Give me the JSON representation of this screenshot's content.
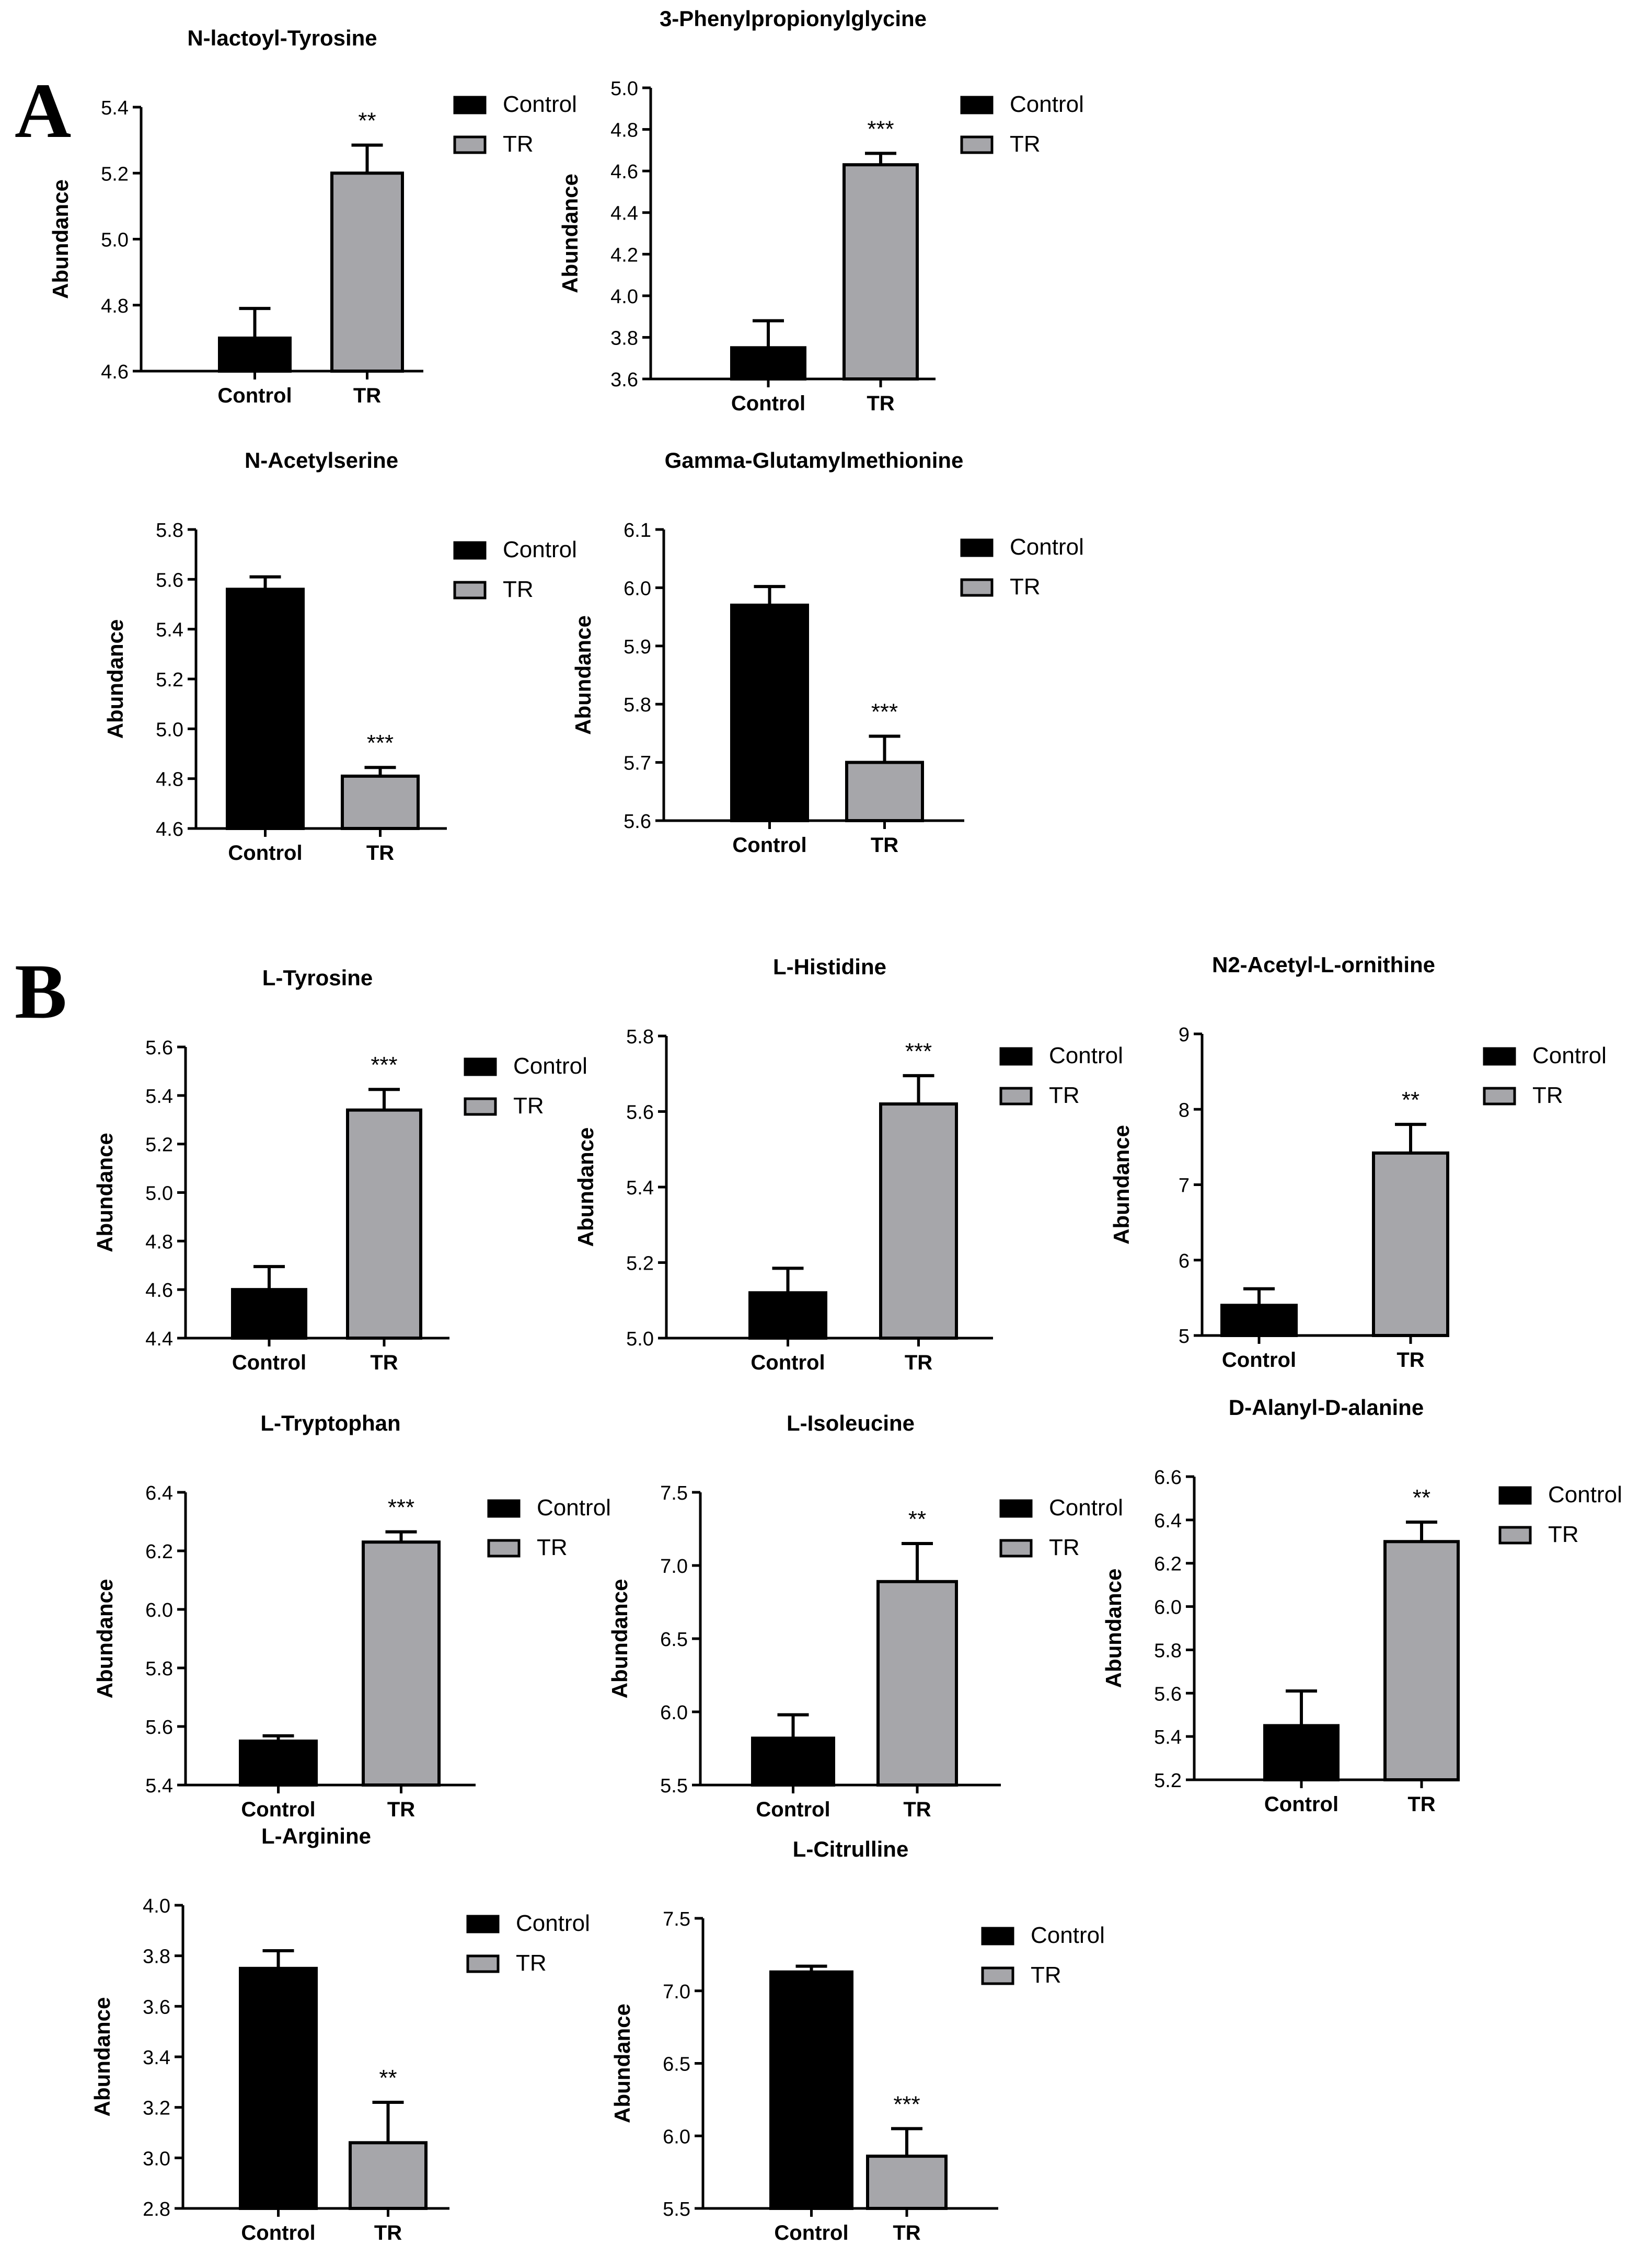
{
  "panels": [
    {
      "letter": "A"
    },
    {
      "letter": "B"
    }
  ],
  "colors": {
    "control": "#000000",
    "tr": "#a6a6aa",
    "axis": "#000000"
  },
  "chart_data": [
    {
      "type": "bar",
      "panel": "A",
      "title": "N-lactoyl-Tyrosine",
      "ylabel": "Abundance",
      "xlabel": "",
      "categories": [
        "Control",
        "TR"
      ],
      "values": [
        4.7,
        5.2
      ],
      "errors": [
        0.09,
        0.085
      ],
      "ylim": [
        4.6,
        5.4
      ],
      "yticks": [
        4.6,
        4.8,
        5.0,
        5.2,
        5.4
      ],
      "tick_decimals": 1,
      "significance": "**",
      "legend": [
        "Control",
        "TR"
      ]
    },
    {
      "type": "bar",
      "panel": "A",
      "title": "3-Phenylpropionylglycine",
      "ylabel": "Abundance",
      "xlabel": "",
      "categories": [
        "Control",
        "TR"
      ],
      "values": [
        3.75,
        4.63
      ],
      "errors": [
        0.13,
        0.055
      ],
      "ylim": [
        3.6,
        5.0
      ],
      "yticks": [
        3.6,
        3.8,
        4.0,
        4.2,
        4.4,
        4.6,
        4.8,
        5.0
      ],
      "tick_decimals": 1,
      "significance": "***",
      "legend": [
        "Control",
        "TR"
      ]
    },
    {
      "type": "bar",
      "panel": "A",
      "title": "N-Acetylserine",
      "ylabel": "Abundance",
      "xlabel": "",
      "categories": [
        "Control",
        "TR"
      ],
      "values": [
        5.56,
        4.81
      ],
      "errors": [
        0.05,
        0.035
      ],
      "ylim": [
        4.6,
        5.8
      ],
      "yticks": [
        4.6,
        4.8,
        5.0,
        5.2,
        5.4,
        5.6,
        5.8
      ],
      "tick_decimals": 1,
      "significance": "***",
      "legend": [
        "Control",
        "TR"
      ]
    },
    {
      "type": "bar",
      "panel": "A",
      "title": "Gamma-Glutamylmethionine",
      "ylabel": "Abundance",
      "xlabel": "",
      "categories": [
        "Control",
        "TR"
      ],
      "values": [
        5.97,
        5.7
      ],
      "errors": [
        0.032,
        0.045
      ],
      "ylim": [
        5.6,
        6.1
      ],
      "yticks": [
        5.6,
        5.7,
        5.8,
        5.9,
        6.0,
        6.1
      ],
      "tick_decimals": 1,
      "significance": "***",
      "legend": [
        "Control",
        "TR"
      ]
    },
    {
      "type": "bar",
      "panel": "B",
      "title": "L-Tyrosine",
      "ylabel": "Abundance",
      "xlabel": "",
      "categories": [
        "Control",
        "TR"
      ],
      "values": [
        4.6,
        5.34
      ],
      "errors": [
        0.095,
        0.085
      ],
      "ylim": [
        4.4,
        5.6
      ],
      "yticks": [
        4.4,
        4.6,
        4.8,
        5.0,
        5.2,
        5.4,
        5.6
      ],
      "tick_decimals": 1,
      "significance": "***",
      "legend": [
        "Control",
        "TR"
      ]
    },
    {
      "type": "bar",
      "panel": "B",
      "title": "L-Histidine",
      "ylabel": "Abundance",
      "xlabel": "",
      "categories": [
        "Control",
        "TR"
      ],
      "values": [
        5.12,
        5.62
      ],
      "errors": [
        0.065,
        0.075
      ],
      "ylim": [
        5.0,
        5.8
      ],
      "yticks": [
        5.0,
        5.2,
        5.4,
        5.6,
        5.8
      ],
      "tick_decimals": 1,
      "significance": "***",
      "legend": [
        "Control",
        "TR"
      ]
    },
    {
      "type": "bar",
      "panel": "B",
      "title": "N2-Acetyl-L-ornithine",
      "ylabel": "Abundance",
      "xlabel": "",
      "categories": [
        "Control",
        "TR"
      ],
      "values": [
        5.4,
        7.42
      ],
      "errors": [
        0.22,
        0.38
      ],
      "ylim": [
        5,
        9
      ],
      "yticks": [
        5,
        6,
        7,
        8,
        9
      ],
      "tick_decimals": 0,
      "significance": "**",
      "legend": [
        "Control",
        "TR"
      ]
    },
    {
      "type": "bar",
      "panel": "B",
      "title": "L-Tryptophan",
      "ylabel": "Abundance",
      "xlabel": "",
      "categories": [
        "Control",
        "TR"
      ],
      "values": [
        5.55,
        6.23
      ],
      "errors": [
        0.018,
        0.035
      ],
      "ylim": [
        5.4,
        6.4
      ],
      "yticks": [
        5.4,
        5.6,
        5.8,
        6.0,
        6.2,
        6.4
      ],
      "tick_decimals": 1,
      "significance": "***",
      "legend": [
        "Control",
        "TR"
      ]
    },
    {
      "type": "bar",
      "panel": "B",
      "title": "L-Isoleucine",
      "ylabel": "Abundance",
      "xlabel": "",
      "categories": [
        "Control",
        "TR"
      ],
      "values": [
        5.82,
        6.89
      ],
      "errors": [
        0.16,
        0.26
      ],
      "ylim": [
        5.5,
        7.5
      ],
      "yticks": [
        5.5,
        6.0,
        6.5,
        7.0,
        7.5
      ],
      "tick_decimals": 1,
      "significance": "**",
      "legend": [
        "Control",
        "TR"
      ]
    },
    {
      "type": "bar",
      "panel": "B",
      "title": "D-Alanyl-D-alanine",
      "ylabel": "Abundance",
      "xlabel": "",
      "categories": [
        "Control",
        "TR"
      ],
      "values": [
        5.45,
        6.3
      ],
      "errors": [
        0.16,
        0.09
      ],
      "ylim": [
        5.2,
        6.6
      ],
      "yticks": [
        5.2,
        5.4,
        5.6,
        5.8,
        6.0,
        6.2,
        6.4,
        6.6
      ],
      "tick_decimals": 1,
      "significance": "**",
      "legend": [
        "Control",
        "TR"
      ]
    },
    {
      "type": "bar",
      "panel": "B",
      "title": "L-Arginine",
      "ylabel": "Abundance",
      "xlabel": "",
      "categories": [
        "Control",
        "TR"
      ],
      "values": [
        3.75,
        3.06
      ],
      "errors": [
        0.07,
        0.16
      ],
      "ylim": [
        2.8,
        4.0
      ],
      "yticks": [
        2.8,
        3.0,
        3.2,
        3.4,
        3.6,
        3.8,
        4.0
      ],
      "tick_decimals": 1,
      "significance": "**",
      "legend": [
        "Control",
        "TR"
      ]
    },
    {
      "type": "bar",
      "panel": "B",
      "title": "L-Citrulline",
      "ylabel": "Abundance",
      "xlabel": "",
      "categories": [
        "Control",
        "TR"
      ],
      "values": [
        7.13,
        5.86
      ],
      "errors": [
        0.04,
        0.19
      ],
      "ylim": [
        5.5,
        7.5
      ],
      "yticks": [
        5.5,
        6.0,
        6.5,
        7.0,
        7.5
      ],
      "tick_decimals": 1,
      "significance": "***",
      "legend": [
        "Control",
        "TR"
      ]
    }
  ]
}
